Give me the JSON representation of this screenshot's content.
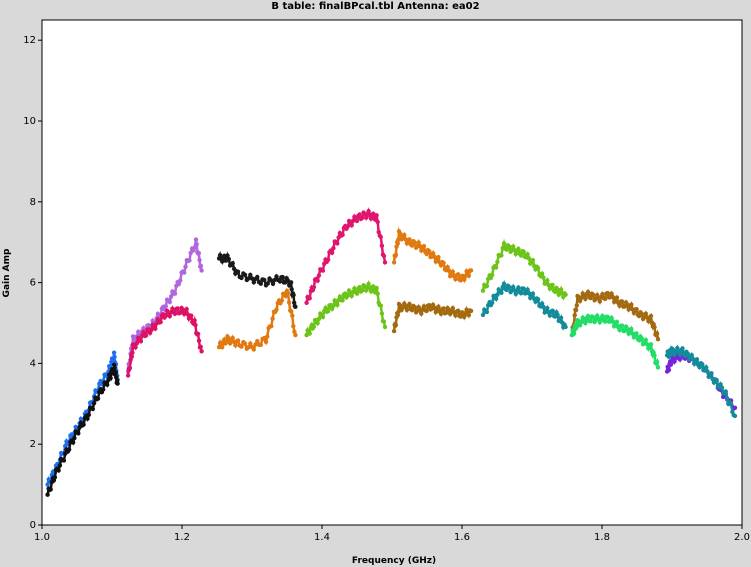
{
  "window_title": "B table: finalBPcal.tbl   Antenna: ea02",
  "chart_data": {
    "type": "scatter",
    "xlabel": "Frequency (GHz)",
    "ylabel": "Gain Amp",
    "xlim": [
      1.0,
      2.0
    ],
    "ylim": [
      0,
      12.5
    ],
    "xticks": [
      "1.0",
      "1.2",
      "1.4",
      "1.6",
      "1.8",
      "2.0"
    ],
    "yticks": [
      "0",
      "2",
      "4",
      "6",
      "8",
      "10",
      "12"
    ],
    "grid": false,
    "series": [
      {
        "color": "#1e6ff0",
        "points": [
          [
            1.008,
            1.0
          ],
          [
            1.02,
            1.4
          ],
          [
            1.035,
            2.0
          ],
          [
            1.05,
            2.4
          ],
          [
            1.065,
            2.8
          ],
          [
            1.08,
            3.4
          ],
          [
            1.095,
            3.8
          ],
          [
            1.103,
            4.2
          ],
          [
            1.108,
            3.6
          ]
        ]
      },
      {
        "color": "#111111",
        "points": [
          [
            1.008,
            0.75
          ],
          [
            1.02,
            1.3
          ],
          [
            1.035,
            1.8
          ],
          [
            1.05,
            2.3
          ],
          [
            1.065,
            2.7
          ],
          [
            1.08,
            3.2
          ],
          [
            1.095,
            3.6
          ],
          [
            1.103,
            3.9
          ],
          [
            1.108,
            3.5
          ]
        ]
      },
      {
        "color": "#b066dd",
        "points": [
          [
            1.123,
            3.8
          ],
          [
            1.13,
            4.6
          ],
          [
            1.145,
            4.8
          ],
          [
            1.16,
            5.0
          ],
          [
            1.175,
            5.4
          ],
          [
            1.19,
            5.8
          ],
          [
            1.205,
            6.4
          ],
          [
            1.22,
            7.0
          ],
          [
            1.228,
            6.3
          ]
        ]
      },
      {
        "color": "#dd1166",
        "points": [
          [
            1.123,
            3.7
          ],
          [
            1.13,
            4.4
          ],
          [
            1.145,
            4.7
          ],
          [
            1.16,
            4.9
          ],
          [
            1.175,
            5.2
          ],
          [
            1.19,
            5.3
          ],
          [
            1.205,
            5.3
          ],
          [
            1.218,
            5.0
          ],
          [
            1.228,
            4.3
          ]
        ]
      },
      {
        "color": "#1a1a1a",
        "points": [
          [
            1.253,
            6.6
          ],
          [
            1.265,
            6.6
          ],
          [
            1.28,
            6.2
          ],
          [
            1.3,
            6.1
          ],
          [
            1.32,
            6.0
          ],
          [
            1.34,
            6.1
          ],
          [
            1.355,
            6.0
          ],
          [
            1.362,
            5.4
          ]
        ]
      },
      {
        "color": "#e07a10",
        "points": [
          [
            1.253,
            4.4
          ],
          [
            1.265,
            4.6
          ],
          [
            1.28,
            4.5
          ],
          [
            1.3,
            4.4
          ],
          [
            1.32,
            4.6
          ],
          [
            1.335,
            5.4
          ],
          [
            1.35,
            5.8
          ],
          [
            1.362,
            4.7
          ]
        ]
      },
      {
        "color": "#e0156e",
        "points": [
          [
            1.378,
            5.5
          ],
          [
            1.39,
            6.0
          ],
          [
            1.405,
            6.5
          ],
          [
            1.42,
            7.0
          ],
          [
            1.435,
            7.4
          ],
          [
            1.45,
            7.6
          ],
          [
            1.465,
            7.7
          ],
          [
            1.478,
            7.6
          ],
          [
            1.49,
            6.5
          ]
        ]
      },
      {
        "color": "#6cc418",
        "points": [
          [
            1.378,
            4.7
          ],
          [
            1.39,
            5.0
          ],
          [
            1.405,
            5.3
          ],
          [
            1.42,
            5.5
          ],
          [
            1.435,
            5.7
          ],
          [
            1.45,
            5.8
          ],
          [
            1.465,
            5.9
          ],
          [
            1.478,
            5.8
          ],
          [
            1.49,
            4.9
          ]
        ]
      },
      {
        "color": "#e07a10",
        "points": [
          [
            1.503,
            6.5
          ],
          [
            1.51,
            7.2
          ],
          [
            1.525,
            7.0
          ],
          [
            1.54,
            6.9
          ],
          [
            1.555,
            6.7
          ],
          [
            1.57,
            6.5
          ],
          [
            1.585,
            6.2
          ],
          [
            1.6,
            6.1
          ],
          [
            1.613,
            6.3
          ]
        ]
      },
      {
        "color": "#a36a10",
        "points": [
          [
            1.503,
            4.8
          ],
          [
            1.51,
            5.4
          ],
          [
            1.525,
            5.4
          ],
          [
            1.54,
            5.3
          ],
          [
            1.555,
            5.4
          ],
          [
            1.57,
            5.3
          ],
          [
            1.585,
            5.3
          ],
          [
            1.6,
            5.2
          ],
          [
            1.613,
            5.3
          ]
        ]
      },
      {
        "color": "#6cc418",
        "points": [
          [
            1.63,
            5.8
          ],
          [
            1.645,
            6.3
          ],
          [
            1.66,
            6.9
          ],
          [
            1.675,
            6.8
          ],
          [
            1.69,
            6.7
          ],
          [
            1.705,
            6.4
          ],
          [
            1.72,
            6.0
          ],
          [
            1.735,
            5.8
          ],
          [
            1.748,
            5.7
          ]
        ]
      },
      {
        "color": "#138c9a",
        "points": [
          [
            1.63,
            5.2
          ],
          [
            1.645,
            5.6
          ],
          [
            1.66,
            5.9
          ],
          [
            1.675,
            5.8
          ],
          [
            1.69,
            5.8
          ],
          [
            1.705,
            5.6
          ],
          [
            1.72,
            5.3
          ],
          [
            1.735,
            5.2
          ],
          [
            1.748,
            4.9
          ]
        ]
      },
      {
        "color": "#a36a10",
        "points": [
          [
            1.757,
            4.7
          ],
          [
            1.765,
            5.6
          ],
          [
            1.78,
            5.7
          ],
          [
            1.795,
            5.6
          ],
          [
            1.81,
            5.7
          ],
          [
            1.825,
            5.5
          ],
          [
            1.84,
            5.4
          ],
          [
            1.855,
            5.2
          ],
          [
            1.87,
            5.1
          ],
          [
            1.88,
            4.6
          ]
        ]
      },
      {
        "color": "#22dd66",
        "points": [
          [
            1.757,
            4.7
          ],
          [
            1.765,
            5.0
          ],
          [
            1.78,
            5.1
          ],
          [
            1.795,
            5.1
          ],
          [
            1.81,
            5.1
          ],
          [
            1.825,
            4.9
          ],
          [
            1.84,
            4.8
          ],
          [
            1.855,
            4.6
          ],
          [
            1.87,
            4.4
          ],
          [
            1.88,
            3.9
          ]
        ]
      },
      {
        "color": "#7722dd",
        "points": [
          [
            1.893,
            3.8
          ],
          [
            1.9,
            4.1
          ],
          [
            1.915,
            4.2
          ],
          [
            1.93,
            4.1
          ],
          [
            1.945,
            3.9
          ],
          [
            1.96,
            3.6
          ],
          [
            1.975,
            3.2
          ],
          [
            1.99,
            2.9
          ]
        ]
      },
      {
        "color": "#138c9a",
        "points": [
          [
            1.893,
            4.2
          ],
          [
            1.9,
            4.3
          ],
          [
            1.915,
            4.3
          ],
          [
            1.93,
            4.1
          ],
          [
            1.945,
            3.9
          ],
          [
            1.96,
            3.6
          ],
          [
            1.975,
            3.3
          ],
          [
            1.99,
            2.7
          ]
        ]
      }
    ]
  }
}
